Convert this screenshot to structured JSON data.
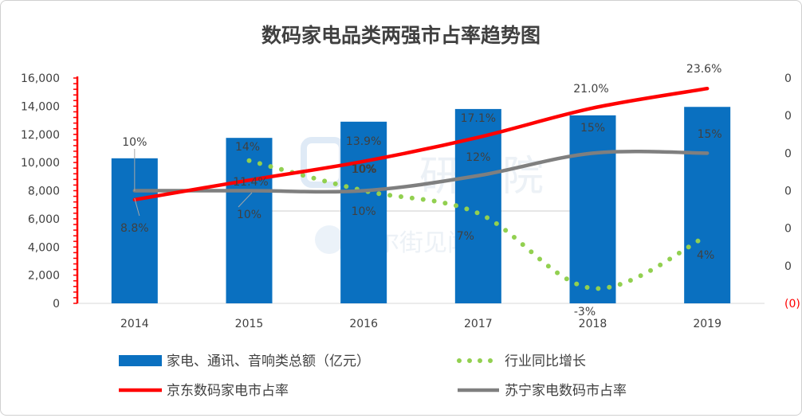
{
  "chart_data": {
    "type": "bar",
    "title": "数码家电品类两强市占率趋势图",
    "categories": [
      "2014",
      "2015",
      "2016",
      "2017",
      "2018",
      "2019"
    ],
    "y_left": {
      "ylim": [
        0,
        16000
      ],
      "ticks": [
        "0",
        "2,000",
        "4,000",
        "6,000",
        "8,000",
        "10,000",
        "12,000",
        "14,000",
        "16,000"
      ]
    },
    "y_right": {
      "ylim": [
        -0.05,
        0.25
      ],
      "ticks": [
        "(0)",
        "0",
        "0",
        "0",
        "0",
        "0",
        "0"
      ]
    },
    "grid": false,
    "legend_position": "bottom",
    "series": [
      {
        "name": "家电、通讯、音响类总额（亿元）",
        "type": "bar",
        "axis": "left",
        "color": "#0a70c0",
        "values": [
          10300,
          11750,
          12900,
          13800,
          13350,
          13950
        ]
      },
      {
        "name": "行业同比增长",
        "type": "line-dotted",
        "axis": "right",
        "color": "#92d050",
        "values": [
          null,
          0.14,
          0.1,
          0.07,
          -0.03,
          0.04
        ],
        "labels": [
          "",
          "14%",
          "10%",
          "7%",
          "-3%",
          "4%"
        ]
      },
      {
        "name": "京东数码家电市占率",
        "type": "line",
        "axis": "right",
        "color": "#ff0000",
        "values": [
          0.088,
          0.114,
          0.139,
          0.171,
          0.21,
          0.236
        ],
        "labels": [
          "8.8%",
          "11.4%",
          "13.9%",
          "17.1%",
          "21.0%",
          "23.6%"
        ]
      },
      {
        "name": "苏宁家电数码市占率",
        "type": "line",
        "axis": "right",
        "color": "#7f7f7f",
        "values": [
          0.1,
          0.1,
          0.1,
          0.12,
          0.15,
          0.15
        ],
        "labels": [
          "10%",
          "10%",
          "10%",
          "12%",
          "15%",
          "15%"
        ]
      }
    ],
    "extra_labels": [
      {
        "text": "10%",
        "series": 2,
        "index": 0
      },
      {
        "text": "10%",
        "series": 2,
        "index": 2
      },
      {
        "text": "10%",
        "series": 2,
        "index": 1
      }
    ]
  },
  "watermark": {
    "text1": "研究院",
    "text2": "华尔街见闻"
  }
}
